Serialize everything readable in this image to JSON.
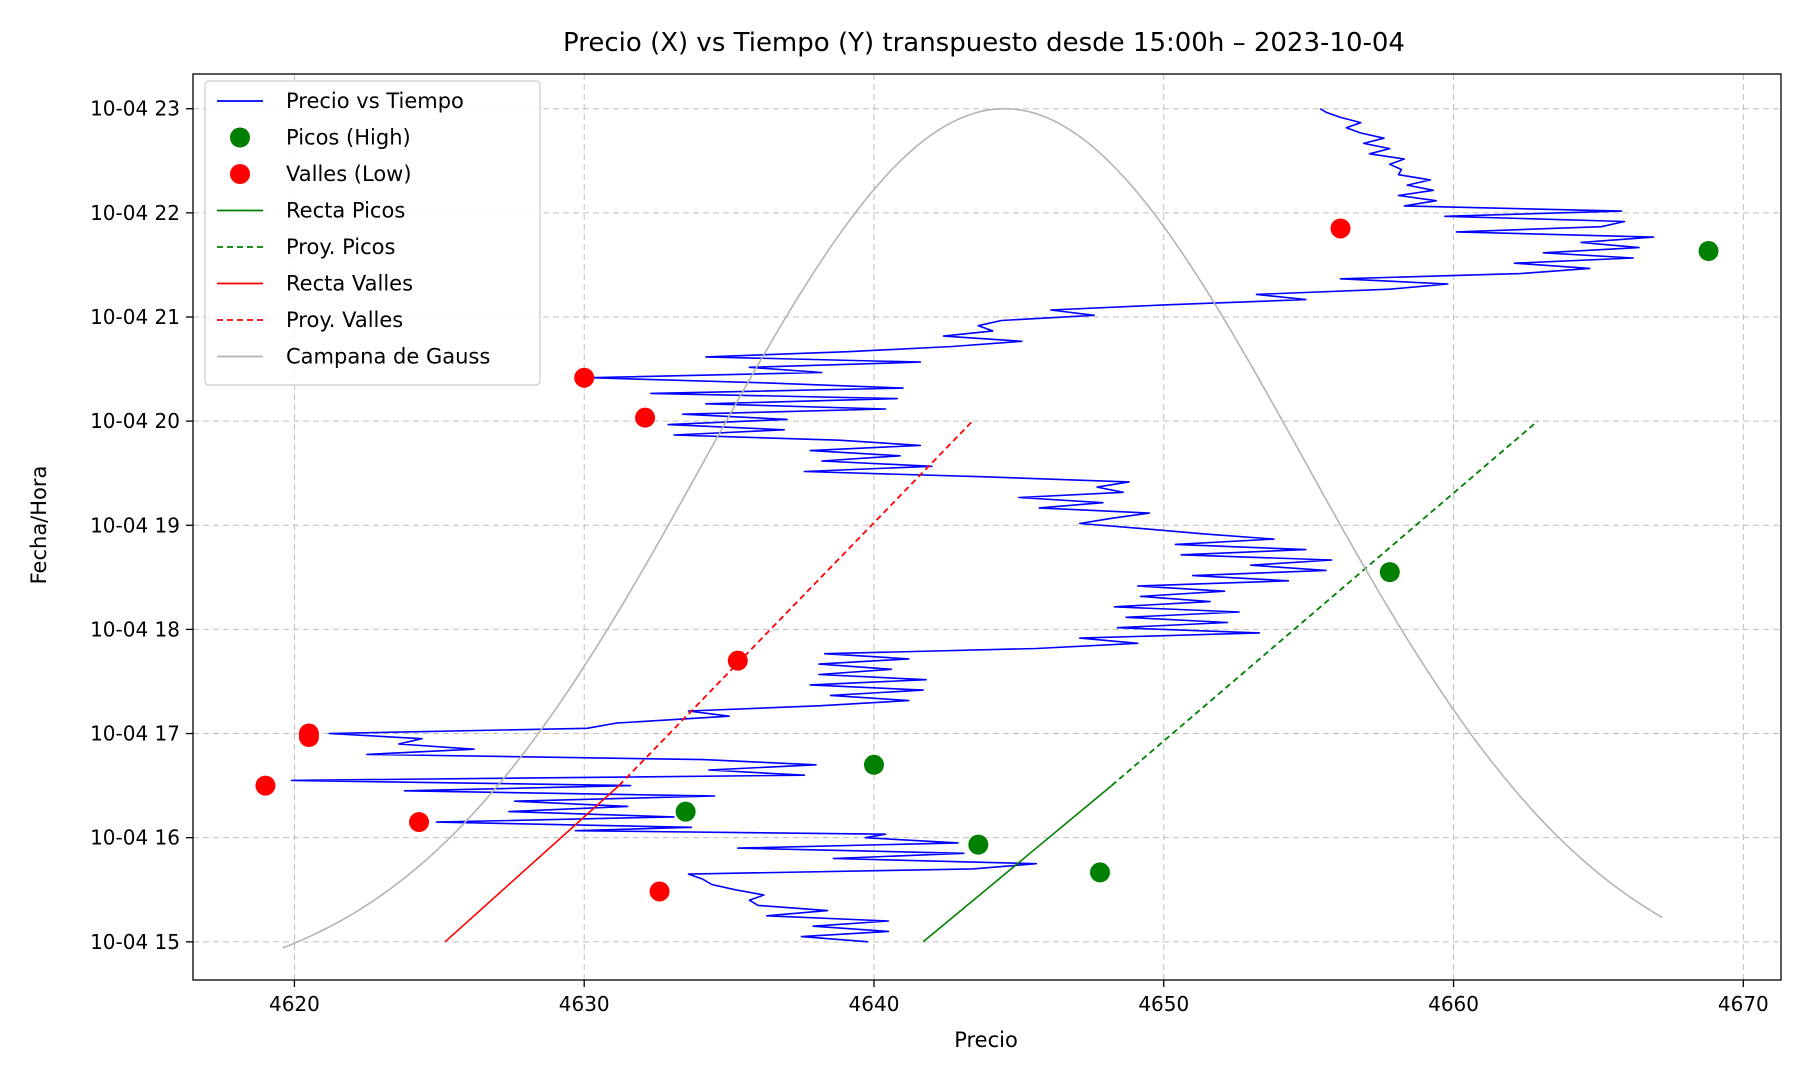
{
  "chart_data": {
    "type": "line",
    "title": "Precio (X) vs Tiempo (Y) transpuesto desde 15:00h – 2023-10-04",
    "xlabel": "Precio",
    "ylabel": "Fecha/Hora",
    "xlim": [
      4616.5,
      4671.3
    ],
    "ylim": [
      "2023-10-04 14:38",
      "2023-10-04 23:20"
    ],
    "x_ticks": [
      4620,
      4630,
      4640,
      4650,
      4660,
      4670
    ],
    "x_tick_labels": [
      "4620",
      "4630",
      "4640",
      "4650",
      "4660",
      "4670"
    ],
    "y_ticks": [
      "2023-10-04 15:00",
      "2023-10-04 16:00",
      "2023-10-04 17:00",
      "2023-10-04 18:00",
      "2023-10-04 19:00",
      "2023-10-04 20:00",
      "2023-10-04 21:00",
      "2023-10-04 22:00",
      "2023-10-04 23:00"
    ],
    "y_tick_labels": [
      "10-04 15",
      "10-04 16",
      "10-04 17",
      "10-04 18",
      "10-04 19",
      "10-04 20",
      "10-04 21",
      "10-04 22",
      "10-04 23"
    ],
    "grid": true,
    "legend_position": "top-left",
    "series": [
      {
        "name": "Precio vs Tiempo",
        "kind": "line",
        "color": "#0000ff",
        "points": [
          {
            "x": 4639.8,
            "time": "2023-10-04 15:00"
          },
          {
            "x": 4637.5,
            "time": "2023-10-04 15:03"
          },
          {
            "x": 4640.5,
            "time": "2023-10-04 15:06"
          },
          {
            "x": 4637.9,
            "time": "2023-10-04 15:09"
          },
          {
            "x": 4640.5,
            "time": "2023-10-04 15:12"
          },
          {
            "x": 4636.3,
            "time": "2023-10-04 15:15"
          },
          {
            "x": 4638.4,
            "time": "2023-10-04 15:18"
          },
          {
            "x": 4636.0,
            "time": "2023-10-04 15:21"
          },
          {
            "x": 4635.7,
            "time": "2023-10-04 15:24"
          },
          {
            "x": 4636.2,
            "time": "2023-10-04 15:27"
          },
          {
            "x": 4635.2,
            "time": "2023-10-04 15:30"
          },
          {
            "x": 4634.4,
            "time": "2023-10-04 15:33"
          },
          {
            "x": 4634.1,
            "time": "2023-10-04 15:36"
          },
          {
            "x": 4633.6,
            "time": "2023-10-04 15:39"
          },
          {
            "x": 4643.4,
            "time": "2023-10-04 15:42"
          },
          {
            "x": 4645.6,
            "time": "2023-10-04 15:45"
          },
          {
            "x": 4638.6,
            "time": "2023-10-04 15:48"
          },
          {
            "x": 4643.1,
            "time": "2023-10-04 15:51"
          },
          {
            "x": 4635.3,
            "time": "2023-10-04 15:54"
          },
          {
            "x": 4642.9,
            "time": "2023-10-04 15:57"
          },
          {
            "x": 4639.7,
            "time": "2023-10-04 16:00"
          },
          {
            "x": 4640.4,
            "time": "2023-10-04 16:02"
          },
          {
            "x": 4629.7,
            "time": "2023-10-04 16:04"
          },
          {
            "x": 4633.7,
            "time": "2023-10-04 16:06"
          },
          {
            "x": 4624.9,
            "time": "2023-10-04 16:09"
          },
          {
            "x": 4633.1,
            "time": "2023-10-04 16:12"
          },
          {
            "x": 4627.4,
            "time": "2023-10-04 16:15"
          },
          {
            "x": 4631.5,
            "time": "2023-10-04 16:18"
          },
          {
            "x": 4627.6,
            "time": "2023-10-04 16:21"
          },
          {
            "x": 4634.5,
            "time": "2023-10-04 16:24"
          },
          {
            "x": 4623.8,
            "time": "2023-10-04 16:27"
          },
          {
            "x": 4631.6,
            "time": "2023-10-04 16:30"
          },
          {
            "x": 4619.9,
            "time": "2023-10-04 16:33"
          },
          {
            "x": 4637.6,
            "time": "2023-10-04 16:36"
          },
          {
            "x": 4634.3,
            "time": "2023-10-04 16:39"
          },
          {
            "x": 4638.0,
            "time": "2023-10-04 16:42"
          },
          {
            "x": 4634.1,
            "time": "2023-10-04 16:45"
          },
          {
            "x": 4622.5,
            "time": "2023-10-04 16:48"
          },
          {
            "x": 4626.2,
            "time": "2023-10-04 16:51"
          },
          {
            "x": 4623.6,
            "time": "2023-10-04 16:54"
          },
          {
            "x": 4624.4,
            "time": "2023-10-04 16:57"
          },
          {
            "x": 4621.2,
            "time": "2023-10-04 17:00"
          },
          {
            "x": 4630.1,
            "time": "2023-10-04 17:03"
          },
          {
            "x": 4631.1,
            "time": "2023-10-04 17:06"
          },
          {
            "x": 4635.0,
            "time": "2023-10-04 17:10"
          },
          {
            "x": 4633.6,
            "time": "2023-10-04 17:13"
          },
          {
            "x": 4638.1,
            "time": "2023-10-04 17:16"
          },
          {
            "x": 4641.2,
            "time": "2023-10-04 17:19"
          },
          {
            "x": 4638.5,
            "time": "2023-10-04 17:22"
          },
          {
            "x": 4641.7,
            "time": "2023-10-04 17:25"
          },
          {
            "x": 4637.8,
            "time": "2023-10-04 17:28"
          },
          {
            "x": 4641.8,
            "time": "2023-10-04 17:31"
          },
          {
            "x": 4638.1,
            "time": "2023-10-04 17:34"
          },
          {
            "x": 4640.6,
            "time": "2023-10-04 17:37"
          },
          {
            "x": 4638.1,
            "time": "2023-10-04 17:40"
          },
          {
            "x": 4641.2,
            "time": "2023-10-04 17:43"
          },
          {
            "x": 4638.3,
            "time": "2023-10-04 17:46"
          },
          {
            "x": 4645.6,
            "time": "2023-10-04 17:49"
          },
          {
            "x": 4649.1,
            "time": "2023-10-04 17:52"
          },
          {
            "x": 4647.1,
            "time": "2023-10-04 17:55"
          },
          {
            "x": 4653.3,
            "time": "2023-10-04 17:58"
          },
          {
            "x": 4648.4,
            "time": "2023-10-04 18:01"
          },
          {
            "x": 4652.2,
            "time": "2023-10-04 18:04"
          },
          {
            "x": 4648.7,
            "time": "2023-10-04 18:07"
          },
          {
            "x": 4652.6,
            "time": "2023-10-04 18:10"
          },
          {
            "x": 4648.3,
            "time": "2023-10-04 18:13"
          },
          {
            "x": 4651.6,
            "time": "2023-10-04 18:16"
          },
          {
            "x": 4649.2,
            "time": "2023-10-04 18:19"
          },
          {
            "x": 4652.1,
            "time": "2023-10-04 18:22"
          },
          {
            "x": 4649.1,
            "time": "2023-10-04 18:25"
          },
          {
            "x": 4654.3,
            "time": "2023-10-04 18:28"
          },
          {
            "x": 4651.0,
            "time": "2023-10-04 18:31"
          },
          {
            "x": 4655.6,
            "time": "2023-10-04 18:34"
          },
          {
            "x": 4653.0,
            "time": "2023-10-04 18:37"
          },
          {
            "x": 4655.8,
            "time": "2023-10-04 18:40"
          },
          {
            "x": 4650.6,
            "time": "2023-10-04 18:43"
          },
          {
            "x": 4654.9,
            "time": "2023-10-04 18:46"
          },
          {
            "x": 4650.4,
            "time": "2023-10-04 18:49"
          },
          {
            "x": 4653.8,
            "time": "2023-10-04 18:52"
          },
          {
            "x": 4651.4,
            "time": "2023-10-04 18:55"
          },
          {
            "x": 4649.3,
            "time": "2023-10-04 18:58"
          },
          {
            "x": 4647.1,
            "time": "2023-10-04 19:01"
          },
          {
            "x": 4648.2,
            "time": "2023-10-04 19:04"
          },
          {
            "x": 4649.5,
            "time": "2023-10-04 19:07"
          },
          {
            "x": 4645.7,
            "time": "2023-10-04 19:10"
          },
          {
            "x": 4647.9,
            "time": "2023-10-04 19:13"
          },
          {
            "x": 4645.0,
            "time": "2023-10-04 19:16"
          },
          {
            "x": 4648.6,
            "time": "2023-10-04 19:19"
          },
          {
            "x": 4647.7,
            "time": "2023-10-04 19:22"
          },
          {
            "x": 4648.8,
            "time": "2023-10-04 19:25"
          },
          {
            "x": 4643.7,
            "time": "2023-10-04 19:28"
          },
          {
            "x": 4637.6,
            "time": "2023-10-04 19:31"
          },
          {
            "x": 4642.0,
            "time": "2023-10-04 19:34"
          },
          {
            "x": 4638.2,
            "time": "2023-10-04 19:37"
          },
          {
            "x": 4640.9,
            "time": "2023-10-04 19:40"
          },
          {
            "x": 4637.8,
            "time": "2023-10-04 19:43"
          },
          {
            "x": 4641.6,
            "time": "2023-10-04 19:46"
          },
          {
            "x": 4638.8,
            "time": "2023-10-04 19:49"
          },
          {
            "x": 4633.1,
            "time": "2023-10-04 19:52"
          },
          {
            "x": 4636.9,
            "time": "2023-10-04 19:55"
          },
          {
            "x": 4632.9,
            "time": "2023-10-04 19:58"
          },
          {
            "x": 4637.0,
            "time": "2023-10-04 20:01"
          },
          {
            "x": 4633.4,
            "time": "2023-10-04 20:04"
          },
          {
            "x": 4640.4,
            "time": "2023-10-04 20:07"
          },
          {
            "x": 4634.2,
            "time": "2023-10-04 20:10"
          },
          {
            "x": 4640.8,
            "time": "2023-10-04 20:13"
          },
          {
            "x": 4632.3,
            "time": "2023-10-04 20:16"
          },
          {
            "x": 4641.0,
            "time": "2023-10-04 20:19"
          },
          {
            "x": 4636.3,
            "time": "2023-10-04 20:22"
          },
          {
            "x": 4630.2,
            "time": "2023-10-04 20:25"
          },
          {
            "x": 4638.2,
            "time": "2023-10-04 20:28"
          },
          {
            "x": 4635.7,
            "time": "2023-10-04 20:31"
          },
          {
            "x": 4641.6,
            "time": "2023-10-04 20:34"
          },
          {
            "x": 4634.2,
            "time": "2023-10-04 20:37"
          },
          {
            "x": 4639.1,
            "time": "2023-10-04 20:40"
          },
          {
            "x": 4642.7,
            "time": "2023-10-04 20:43"
          },
          {
            "x": 4645.1,
            "time": "2023-10-04 20:46"
          },
          {
            "x": 4642.4,
            "time": "2023-10-04 20:49"
          },
          {
            "x": 4644.1,
            "time": "2023-10-04 20:52"
          },
          {
            "x": 4643.6,
            "time": "2023-10-04 20:55"
          },
          {
            "x": 4644.4,
            "time": "2023-10-04 20:58"
          },
          {
            "x": 4647.6,
            "time": "2023-10-04 21:01"
          },
          {
            "x": 4646.1,
            "time": "2023-10-04 21:04"
          },
          {
            "x": 4650.1,
            "time": "2023-10-04 21:07"
          },
          {
            "x": 4654.9,
            "time": "2023-10-04 21:10"
          },
          {
            "x": 4653.2,
            "time": "2023-10-04 21:13"
          },
          {
            "x": 4657.8,
            "time": "2023-10-04 21:16"
          },
          {
            "x": 4659.8,
            "time": "2023-10-04 21:19"
          },
          {
            "x": 4656.1,
            "time": "2023-10-04 21:22"
          },
          {
            "x": 4662.3,
            "time": "2023-10-04 21:25"
          },
          {
            "x": 4664.7,
            "time": "2023-10-04 21:28"
          },
          {
            "x": 4662.1,
            "time": "2023-10-04 21:31"
          },
          {
            "x": 4666.2,
            "time": "2023-10-04 21:34"
          },
          {
            "x": 4663.1,
            "time": "2023-10-04 21:37"
          },
          {
            "x": 4666.4,
            "time": "2023-10-04 21:40"
          },
          {
            "x": 4664.4,
            "time": "2023-10-04 21:43"
          },
          {
            "x": 4666.9,
            "time": "2023-10-04 21:46"
          },
          {
            "x": 4660.1,
            "time": "2023-10-04 21:49"
          },
          {
            "x": 4665.1,
            "time": "2023-10-04 21:52"
          },
          {
            "x": 4665.9,
            "time": "2023-10-04 21:55"
          },
          {
            "x": 4659.7,
            "time": "2023-10-04 21:58"
          },
          {
            "x": 4665.8,
            "time": "2023-10-04 22:01"
          },
          {
            "x": 4658.3,
            "time": "2023-10-04 22:04"
          },
          {
            "x": 4659.4,
            "time": "2023-10-04 22:07"
          },
          {
            "x": 4658.1,
            "time": "2023-10-04 22:10"
          },
          {
            "x": 4659.3,
            "time": "2023-10-04 22:13"
          },
          {
            "x": 4658.4,
            "time": "2023-10-04 22:16"
          },
          {
            "x": 4659.2,
            "time": "2023-10-04 22:19"
          },
          {
            "x": 4658.1,
            "time": "2023-10-04 22:22"
          },
          {
            "x": 4658.2,
            "time": "2023-10-04 22:25"
          },
          {
            "x": 4657.8,
            "time": "2023-10-04 22:28"
          },
          {
            "x": 4658.3,
            "time": "2023-10-04 22:31"
          },
          {
            "x": 4657.1,
            "time": "2023-10-04 22:34"
          },
          {
            "x": 4657.8,
            "time": "2023-10-04 22:37"
          },
          {
            "x": 4656.9,
            "time": "2023-10-04 22:40"
          },
          {
            "x": 4657.6,
            "time": "2023-10-04 22:43"
          },
          {
            "x": 4656.8,
            "time": "2023-10-04 22:46"
          },
          {
            "x": 4656.3,
            "time": "2023-10-04 22:49"
          },
          {
            "x": 4656.8,
            "time": "2023-10-04 22:52"
          },
          {
            "x": 4656.1,
            "time": "2023-10-04 22:55"
          },
          {
            "x": 4655.6,
            "time": "2023-10-04 22:58"
          },
          {
            "x": 4655.4,
            "time": "2023-10-04 23:00"
          }
        ]
      },
      {
        "name": "Picos (High)",
        "kind": "scatter",
        "color": "#008000",
        "points": [
          {
            "x": 4647.8,
            "time": "2023-10-04 15:40"
          },
          {
            "x": 4643.6,
            "time": "2023-10-04 15:56"
          },
          {
            "x": 4633.5,
            "time": "2023-10-04 16:15"
          },
          {
            "x": 4640.0,
            "time": "2023-10-04 16:42"
          },
          {
            "x": 4657.8,
            "time": "2023-10-04 18:33"
          },
          {
            "x": 4668.8,
            "time": "2023-10-04 21:38"
          }
        ]
      },
      {
        "name": "Valles (Low)",
        "kind": "scatter",
        "color": "#ff0000",
        "points": [
          {
            "x": 4632.6,
            "time": "2023-10-04 15:29"
          },
          {
            "x": 4624.3,
            "time": "2023-10-04 16:09"
          },
          {
            "x": 4619.0,
            "time": "2023-10-04 16:30"
          },
          {
            "x": 4620.5,
            "time": "2023-10-04 16:58"
          },
          {
            "x": 4620.5,
            "time": "2023-10-04 17:00"
          },
          {
            "x": 4635.3,
            "time": "2023-10-04 17:42"
          },
          {
            "x": 4632.1,
            "time": "2023-10-04 20:02"
          },
          {
            "x": 4630.0,
            "time": "2023-10-04 20:25"
          },
          {
            "x": 4656.1,
            "time": "2023-10-04 21:51"
          }
        ]
      },
      {
        "name": "Recta Picos",
        "kind": "line",
        "color": "#008000",
        "dashed": false,
        "points": [
          {
            "x": 4641.7,
            "time": "2023-10-04 15:00"
          },
          {
            "x": 4648.2,
            "time": "2023-10-04 16:30"
          }
        ]
      },
      {
        "name": "Proy. Picos",
        "kind": "line",
        "color": "#008000",
        "dashed": true,
        "points": [
          {
            "x": 4648.2,
            "time": "2023-10-04 16:30"
          },
          {
            "x": 4662.9,
            "time": "2023-10-04 20:00"
          }
        ]
      },
      {
        "name": "Recta Valles",
        "kind": "line",
        "color": "#ff0000",
        "dashed": false,
        "points": [
          {
            "x": 4625.2,
            "time": "2023-10-04 15:00"
          },
          {
            "x": 4631.2,
            "time": "2023-10-04 16:30"
          }
        ]
      },
      {
        "name": "Proy. Valles",
        "kind": "line",
        "color": "#ff0000",
        "dashed": true,
        "points": [
          {
            "x": 4631.2,
            "time": "2023-10-04 16:30"
          },
          {
            "x": 4643.4,
            "time": "2023-10-04 20:00"
          }
        ]
      },
      {
        "name": "Campana de Gauss",
        "kind": "curve",
        "color": "#b4b4b4",
        "x_range": [
          4619.6,
          4667.2
        ],
        "mean": 4644.5,
        "sigma": 10.3,
        "baseline_time": "2023-10-04 14:29",
        "peak_time": "2023-10-04 23:00"
      }
    ]
  }
}
